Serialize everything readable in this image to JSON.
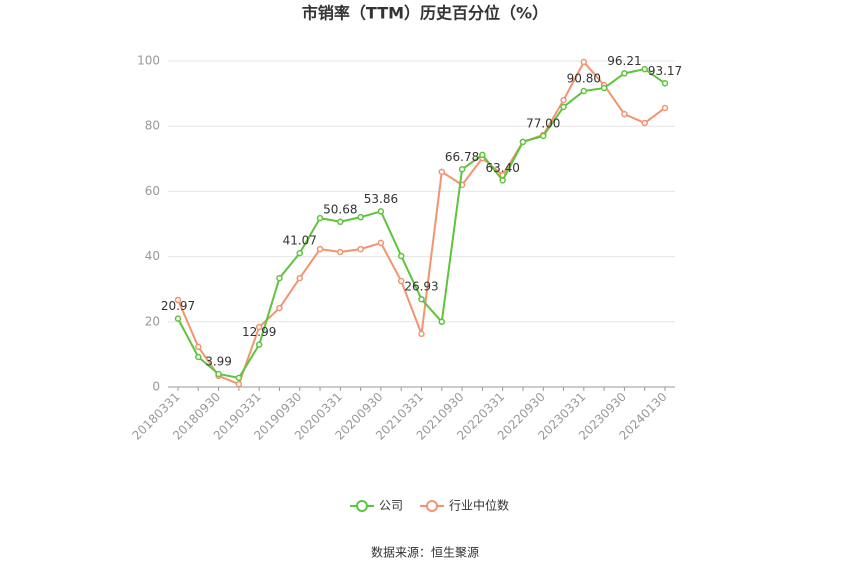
{
  "chart_data": {
    "type": "line",
    "title": "市销率（TTM）历史百分位（%）",
    "categories": [
      "20180331",
      null,
      "20180930",
      null,
      "20190331",
      null,
      "20190930",
      null,
      "20200331",
      null,
      "20200930",
      null,
      "20210331",
      null,
      "20210930",
      null,
      "20220331",
      null,
      "20220930",
      null,
      "20230331",
      null,
      "20230930",
      null,
      "20240130"
    ],
    "series": [
      {
        "name": "公司",
        "color": "#5ec43c",
        "values": [
          20.97,
          9.2,
          3.99,
          2.8,
          12.99,
          33.4,
          41.07,
          51.8,
          50.68,
          52.1,
          53.86,
          40.2,
          26.93,
          20,
          66.78,
          71.2,
          63.4,
          75.2,
          77.0,
          85.9,
          90.8,
          91.7,
          96.21,
          97.5,
          93.17
        ],
        "value_labels": [
          "20.97",
          null,
          "3.99",
          null,
          "12.99",
          null,
          "41.07",
          null,
          "50.68",
          null,
          "53.86",
          null,
          "26.93",
          null,
          "66.78",
          null,
          "63.40",
          null,
          "77.00",
          null,
          "90.80",
          null,
          "96.21",
          null,
          "93.17"
        ]
      },
      {
        "name": "行业中位数",
        "color": "#f29470",
        "values": [
          26.7,
          12.3,
          3.4,
          0.9,
          18.4,
          24.2,
          33.4,
          42.3,
          41.4,
          42.3,
          44.2,
          32.5,
          16.3,
          66,
          62,
          70.2,
          65,
          75.2,
          77.3,
          88,
          99.7,
          92.6,
          83.7,
          81,
          85.6
        ]
      }
    ],
    "ylim": [
      0,
      100
    ],
    "yticks": [
      0,
      20,
      40,
      60,
      80,
      100
    ],
    "grid": true,
    "legend": "bottom",
    "source": "数据来源：恒生聚源"
  }
}
